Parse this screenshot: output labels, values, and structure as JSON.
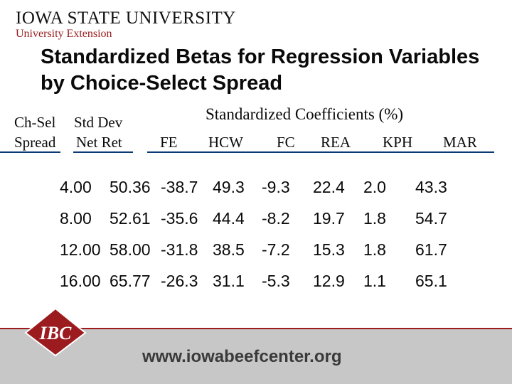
{
  "header": {
    "university": "IOWA STATE UNIVERSITY",
    "extension": "University Extension"
  },
  "title": "Standardized Betas for Regression Variables by Choice-Select Spread",
  "table": {
    "col1_header": [
      "Ch-Sel",
      "Spread"
    ],
    "col2_header": [
      "Std Dev",
      "Net Ret"
    ],
    "group_header": "Standardized Coefficients (%)",
    "coef_headers": [
      "FE",
      "HCW",
      "FC",
      "REA",
      "KPH",
      "MAR"
    ],
    "rows": [
      [
        "4.00",
        "50.36",
        "-38.7",
        "49.3",
        "-9.3",
        "22.4",
        "2.0",
        "43.3"
      ],
      [
        "8.00",
        "52.61",
        "-35.6",
        "44.4",
        "-8.2",
        "19.7",
        "1.8",
        "54.7"
      ],
      [
        "12.00",
        "58.00",
        "-31.8",
        "38.5",
        "-7.2",
        "15.3",
        "1.8",
        "61.7"
      ],
      [
        "16.00",
        "65.77",
        "-26.3",
        "31.1",
        "-5.3",
        "12.9",
        "1.1",
        "65.1"
      ]
    ]
  },
  "footer": {
    "logo_text": "IBC",
    "url": "www.iowabeefcenter.org"
  },
  "colors": {
    "accent_red": "#9b1b1e",
    "rule_blue": "#0a3a73",
    "footer_gray": "#c7c7c7"
  }
}
